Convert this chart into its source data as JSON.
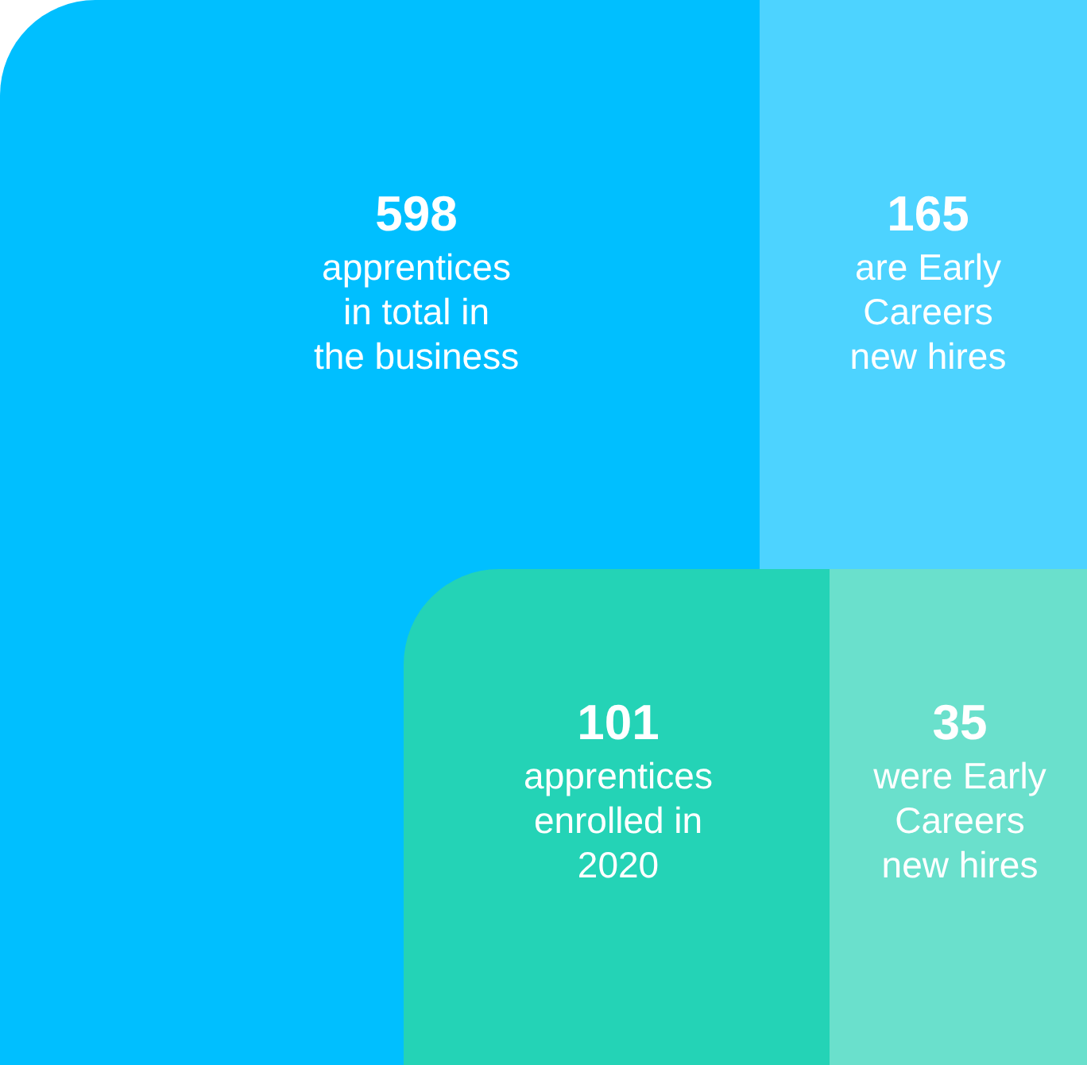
{
  "chart_data": {
    "type": "other",
    "categories": [
      "apprentices\nin total in\nthe business",
      "are Early\nCareers\nnew hires",
      "apprentices\nenrolled in\n2020",
      "were Early\nCareers\nnew hires"
    ],
    "values": [
      598,
      165,
      101,
      35
    ],
    "data_labels": true,
    "colors": [
      "#00bfff",
      "#4dd3ff",
      "#24d3b6",
      "#6ae0cc"
    ]
  }
}
